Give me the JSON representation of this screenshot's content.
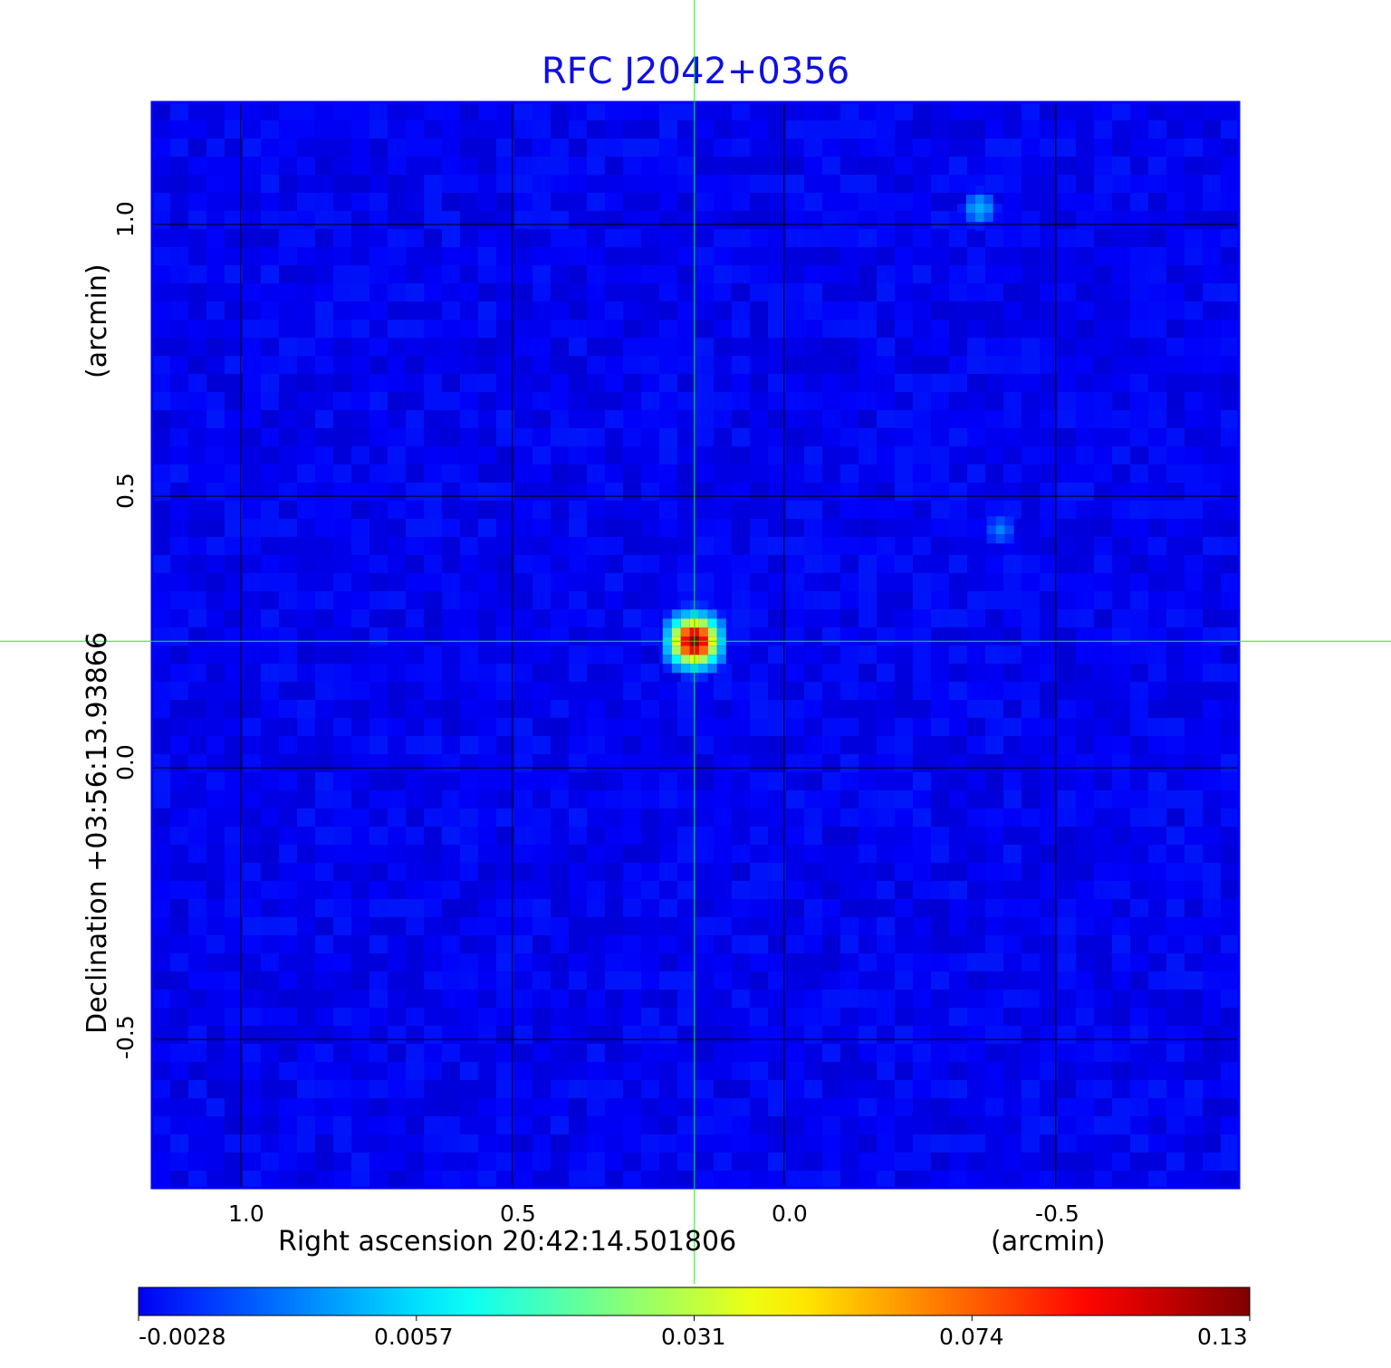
{
  "chart_data": {
    "type": "heatmap",
    "title": "RFC J2042+0356",
    "xlabel": "Right ascension  20:42:14.501806",
    "xunit": "(arcmin)",
    "ylabel": "Declination  +03:56:13.93866",
    "yunit": "(arcmin)",
    "xlim": [
      1.163,
      -0.837
    ],
    "ylim": [
      -0.773,
      1.225
    ],
    "xticks": [
      1.0,
      0.5,
      0.0,
      -0.5
    ],
    "xtick_labels": [
      "1.0",
      "0.5",
      "0.0",
      "-0.5"
    ],
    "yticks": [
      1.0,
      0.5,
      0.0,
      -0.5
    ],
    "ytick_labels": [
      "1.0",
      "0.5",
      "0.0",
      "-0.5"
    ],
    "grid": true,
    "colormap": "jet",
    "crosshair": {
      "x": 0.165,
      "y": 0.233,
      "color": "#00ff00"
    },
    "colorbar": {
      "orientation": "horizontal",
      "placement": "bottom",
      "tick_labels": [
        "-0.0028",
        "0.0057",
        "0.031",
        "0.074",
        "0.13"
      ],
      "tick_values": [
        -0.0028,
        0.0057,
        0.031,
        0.074,
        0.13
      ]
    },
    "background_level": 0.001,
    "sources": [
      {
        "x": 0.165,
        "y": 0.233,
        "peak": 0.13
      },
      {
        "x": -0.36,
        "y": 1.03,
        "peak": 0.01
      },
      {
        "x": -0.398,
        "y": 0.438,
        "peak": 0.006
      }
    ]
  }
}
